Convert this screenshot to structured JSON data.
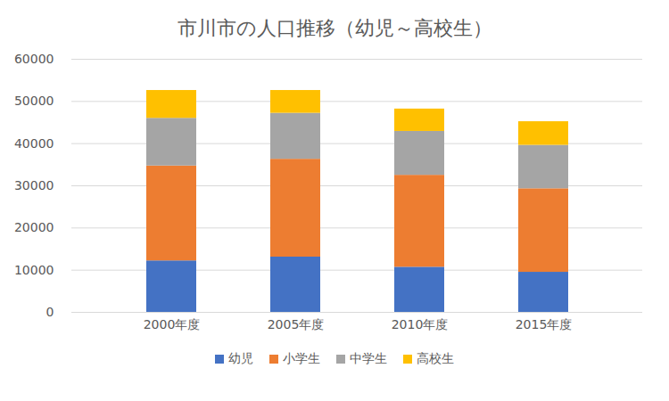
{
  "chart_data": {
    "type": "bar",
    "title": "市川市の人口推移（幼児～高校生）",
    "categories": [
      "2000年度",
      "2005年度",
      "2010年度",
      "2015年度"
    ],
    "series": [
      {
        "name": "幼児",
        "color": "#4472c4",
        "values": [
          12200,
          13100,
          10700,
          9500
        ]
      },
      {
        "name": "小学生",
        "color": "#ed7d31",
        "values": [
          22500,
          23200,
          21800,
          19800
        ]
      },
      {
        "name": "中学生",
        "color": "#a5a5a5",
        "values": [
          11300,
          10900,
          10400,
          10300
        ]
      },
      {
        "name": "高校生",
        "color": "#ffc000",
        "values": [
          6600,
          5400,
          5300,
          5600
        ]
      }
    ],
    "stacked": true,
    "ylim": [
      0,
      60000
    ],
    "yticks": [
      0,
      10000,
      20000,
      30000,
      40000,
      50000,
      60000
    ],
    "grid": true,
    "legend": "bottom"
  }
}
